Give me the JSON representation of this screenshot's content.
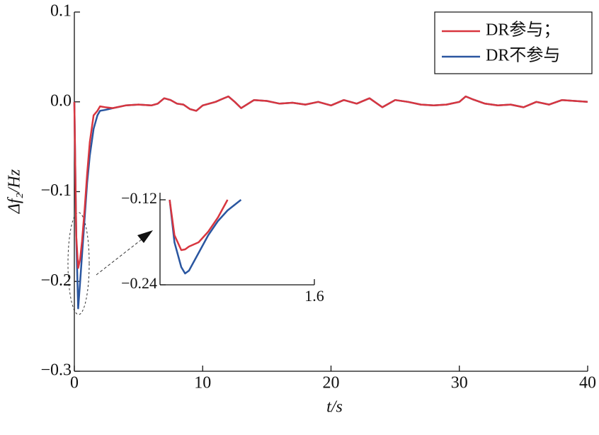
{
  "chart_data": [
    {
      "type": "line",
      "xlabel": "t/s",
      "ylabel": "Δf₂/Hz",
      "x": [
        0,
        0.15,
        0.3,
        0.45,
        0.6,
        0.8,
        1.0,
        1.2,
        1.5,
        1.8,
        2.0,
        2.4,
        3,
        4,
        5,
        6,
        6.5,
        7,
        7.5,
        8,
        8.5,
        9,
        9.5,
        10,
        11,
        11.5,
        12,
        12.5,
        13,
        14,
        15,
        16,
        17,
        18,
        19,
        20,
        21,
        22,
        23,
        24,
        25,
        26,
        27,
        28,
        29,
        30,
        30.5,
        31,
        32,
        33,
        34,
        35,
        36,
        37,
        38,
        39,
        40
      ],
      "series": [
        {
          "name": "DR不参与",
          "color": "#2a56a0",
          "values": [
            0,
            -0.15,
            -0.23,
            -0.2,
            -0.17,
            -0.13,
            -0.09,
            -0.06,
            -0.03,
            -0.015,
            -0.01,
            -0.009,
            -0.007,
            -0.004,
            -0.003,
            -0.004,
            -0.002,
            0.004,
            0.002,
            -0.002,
            -0.003,
            -0.008,
            -0.01,
            -0.004,
            0.0,
            0.003,
            0.006,
            0.0,
            -0.007,
            0.002,
            0.001,
            -0.002,
            -0.001,
            -0.003,
            0.0,
            -0.004,
            0.002,
            -0.002,
            0.004,
            -0.006,
            0.002,
            0.0,
            -0.003,
            -0.004,
            -0.003,
            0.0,
            0.006,
            0.003,
            -0.002,
            -0.004,
            -0.003,
            -0.006,
            0.0,
            -0.003,
            0.002,
            0.001,
            0.0
          ]
        },
        {
          "name": "DR参与；",
          "color": "#d8363f",
          "values": [
            0,
            -0.15,
            -0.185,
            -0.175,
            -0.155,
            -0.12,
            -0.08,
            -0.045,
            -0.015,
            -0.01,
            -0.005,
            -0.006,
            -0.007,
            -0.004,
            -0.003,
            -0.004,
            -0.002,
            0.004,
            0.002,
            -0.002,
            -0.003,
            -0.008,
            -0.01,
            -0.004,
            0.0,
            0.003,
            0.006,
            0.0,
            -0.007,
            0.002,
            0.001,
            -0.002,
            -0.001,
            -0.003,
            0.0,
            -0.004,
            0.002,
            -0.002,
            0.004,
            -0.006,
            0.002,
            0.0,
            -0.003,
            -0.004,
            -0.003,
            0.0,
            0.006,
            0.003,
            -0.002,
            -0.004,
            -0.003,
            -0.006,
            0.0,
            -0.003,
            0.002,
            0.001,
            0.0
          ]
        }
      ],
      "xlim": [
        0,
        40
      ],
      "xticks": [
        0,
        10,
        20,
        30,
        40
      ],
      "ylim": [
        -0.3,
        0.1
      ],
      "yticks": [
        {
          "value": -0.3,
          "label": "−0.3"
        },
        {
          "value": -0.2,
          "label": "−0.2"
        },
        {
          "value": -0.1,
          "label": "−0.1"
        },
        {
          "value": 0,
          "label": "0.0"
        },
        0.1
      ],
      "legend": "upper right"
    },
    {
      "type": "line",
      "x": [
        0.1,
        0.15,
        0.22,
        0.26,
        0.3,
        0.4,
        0.5,
        0.6,
        0.7,
        0.84
      ],
      "series": [
        {
          "color": "#2a56a0",
          "values": [
            -0.12,
            -0.18,
            -0.215,
            -0.224,
            -0.22,
            -0.195,
            -0.17,
            -0.15,
            -0.135,
            -0.12
          ]
        },
        {
          "color": "#d8363f",
          "values": [
            -0.12,
            -0.17,
            -0.191,
            -0.19,
            -0.186,
            -0.18,
            -0.165,
            -0.145,
            -0.12,
            null
          ]
        }
      ],
      "xlim": [
        0,
        1.6
      ],
      "xticks": [
        1.6
      ],
      "ylim": [
        -0.24,
        -0.11
      ],
      "yticks": [
        {
          "value": -0.24,
          "label": "−0.24"
        },
        {
          "value": -0.12,
          "label": "−0.12"
        }
      ]
    }
  ]
}
